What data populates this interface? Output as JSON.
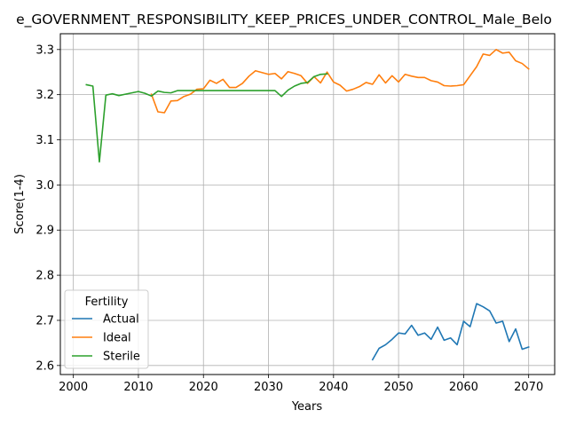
{
  "chart_data": {
    "type": "line",
    "title": "e_GOVERNMENT_RESPONSIBILITY_KEEP_PRICES_UNDER_CONTROL_Male_Belo",
    "xlabel": "Years",
    "ylabel": "Score(1-4)",
    "xlim": [
      1998,
      2074
    ],
    "ylim": [
      2.58,
      3.335
    ],
    "xticks": [
      2000,
      2010,
      2020,
      2030,
      2040,
      2050,
      2060,
      2070
    ],
    "yticks": [
      2.6,
      2.7,
      2.8,
      2.9,
      3.0,
      3.1,
      3.2,
      3.3
    ],
    "yticklabels": [
      "2.6",
      "2.7",
      "2.8",
      "2.9",
      "3.0",
      "3.1",
      "3.2",
      "3.3"
    ],
    "grid": true,
    "legend": {
      "title": "Fertility",
      "placement": "lower-left"
    },
    "series": [
      {
        "name": "Actual",
        "color": "#1f77b4",
        "x": [
          2046,
          2047,
          2048,
          2049,
          2050,
          2051,
          2052,
          2053,
          2054,
          2055,
          2056,
          2057,
          2058,
          2059,
          2060,
          2061,
          2062,
          2063,
          2064,
          2065,
          2066,
          2067,
          2068,
          2069,
          2070
        ],
        "y": [
          2.613,
          2.638,
          2.646,
          2.658,
          2.672,
          2.67,
          2.689,
          2.667,
          2.672,
          2.658,
          2.685,
          2.656,
          2.661,
          2.646,
          2.698,
          2.686,
          2.737,
          2.73,
          2.721,
          2.694,
          2.698,
          2.653,
          2.681,
          2.636,
          2.641
        ]
      },
      {
        "name": "Ideal",
        "color": "#ff7f0e",
        "x": [
          2012,
          2013,
          2014,
          2015,
          2016,
          2017,
          2018,
          2019,
          2020,
          2021,
          2022,
          2023,
          2024,
          2025,
          2026,
          2027,
          2028,
          2029,
          2030,
          2031,
          2032,
          2033,
          2034,
          2035,
          2036,
          2037,
          2038,
          2039,
          2040,
          2041,
          2042,
          2043,
          2044,
          2045,
          2046,
          2047,
          2048,
          2049,
          2050,
          2051,
          2052,
          2053,
          2054,
          2055,
          2056,
          2057,
          2058,
          2059,
          2060,
          2061,
          2062,
          2063,
          2064,
          2065,
          2066,
          2067,
          2068,
          2069,
          2070
        ],
        "y": [
          3.201,
          3.162,
          3.16,
          3.186,
          3.187,
          3.196,
          3.201,
          3.212,
          3.213,
          3.232,
          3.225,
          3.234,
          3.216,
          3.216,
          3.225,
          3.241,
          3.253,
          3.249,
          3.245,
          3.247,
          3.235,
          3.251,
          3.247,
          3.242,
          3.225,
          3.24,
          3.226,
          3.25,
          3.228,
          3.221,
          3.208,
          3.212,
          3.218,
          3.227,
          3.223,
          3.244,
          3.226,
          3.242,
          3.228,
          3.245,
          3.241,
          3.238,
          3.238,
          3.231,
          3.228,
          3.22,
          3.219,
          3.22,
          3.222,
          3.242,
          3.262,
          3.29,
          3.287,
          3.3,
          3.292,
          3.294,
          3.275,
          3.269,
          3.257
        ]
      },
      {
        "name": "Sterile",
        "color": "#2ca02c",
        "x": [
          2002,
          2003,
          2004,
          2005,
          2006,
          2007,
          2008,
          2009,
          2010,
          2011,
          2012,
          2013,
          2014,
          2015,
          2016,
          2017,
          2018,
          2019,
          2020,
          2021,
          2022,
          2023,
          2024,
          2025,
          2026,
          2027,
          2028,
          2029,
          2030,
          2031,
          2032,
          2033,
          2034,
          2035,
          2036,
          2037,
          2038,
          2039
        ],
        "y": [
          3.222,
          3.219,
          3.051,
          3.199,
          3.202,
          3.198,
          3.201,
          3.204,
          3.207,
          3.203,
          3.197,
          3.208,
          3.205,
          3.204,
          3.209,
          3.209,
          3.209,
          3.209,
          3.209,
          3.209,
          3.209,
          3.209,
          3.209,
          3.209,
          3.209,
          3.209,
          3.209,
          3.209,
          3.209,
          3.209,
          3.196,
          3.21,
          3.219,
          3.225,
          3.227,
          3.24,
          3.245,
          3.246
        ]
      }
    ]
  }
}
